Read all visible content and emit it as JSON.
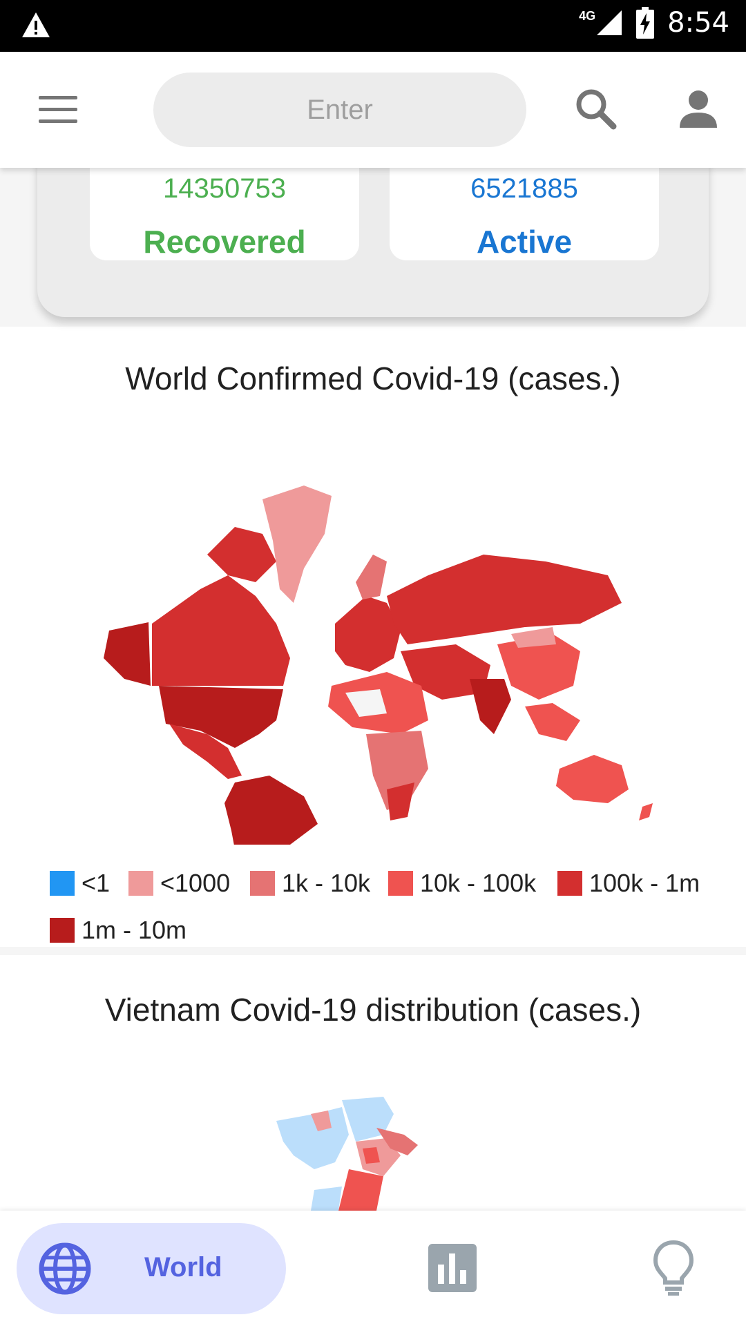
{
  "status_bar": {
    "network": "4G",
    "time": "8:54"
  },
  "header": {
    "search_placeholder": "Enter"
  },
  "stats": {
    "recovered": {
      "value": "14350753",
      "label": "Recovered"
    },
    "active": {
      "value": "6521885",
      "label": "Active"
    }
  },
  "world_chart": {
    "title": "World Confirmed Covid-19 (cases.)",
    "legend": [
      {
        "label": "<1",
        "color": "#2196f3"
      },
      {
        "label": "<1000",
        "color": "#ef9a9a"
      },
      {
        "label": "1k - 10k",
        "color": "#e57373"
      },
      {
        "label": "10k - 100k",
        "color": "#ef5350"
      },
      {
        "label": "100k - 1m",
        "color": "#d32f2f"
      },
      {
        "label": "1m - 10m",
        "color": "#b71c1c"
      }
    ]
  },
  "vietnam_chart": {
    "title": "Vietnam Covid-19 distribution (cases.)"
  },
  "bottom_nav": {
    "world_label": "World",
    "accent_color": "#5463e0",
    "selected_bg": "#dfe3ff"
  }
}
